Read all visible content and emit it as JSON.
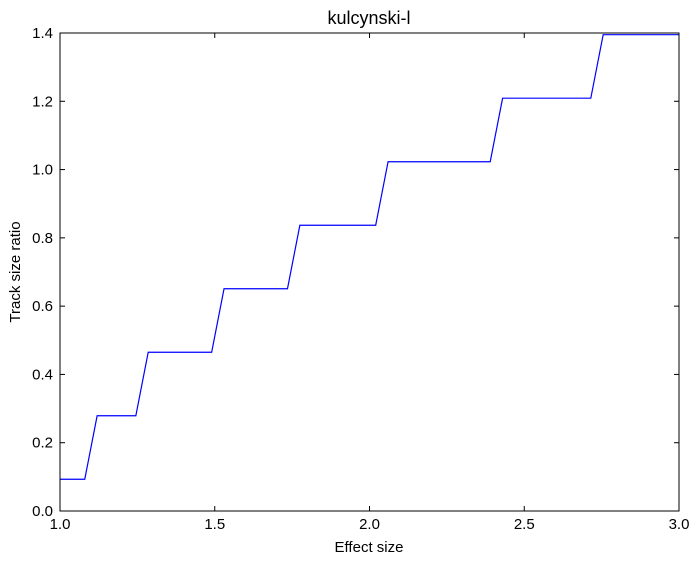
{
  "chart_data": {
    "type": "line",
    "title": "kulcynski-l",
    "xlabel": "Effect size",
    "ylabel": "Track size ratio",
    "xlim": [
      1.0,
      3.0
    ],
    "ylim": [
      0.0,
      1.4
    ],
    "x_ticks": [
      "1.0",
      "1.5",
      "2.0",
      "2.5",
      "3.0"
    ],
    "y_ticks": [
      "0.0",
      "0.2",
      "0.4",
      "0.6",
      "0.8",
      "1.0",
      "1.2",
      "1.4"
    ],
    "grid": false,
    "series": [
      {
        "color": "#0000ff",
        "x": [
          1.0,
          1.08,
          1.12,
          1.245,
          1.285,
          1.49,
          1.53,
          1.735,
          1.775,
          2.02,
          2.06,
          2.39,
          2.43,
          2.715,
          2.755,
          3.0
        ],
        "y": [
          0.093,
          0.093,
          0.279,
          0.279,
          0.465,
          0.465,
          0.651,
          0.651,
          0.837,
          0.837,
          1.023,
          1.023,
          1.209,
          1.209,
          1.395,
          1.395
        ]
      }
    ]
  }
}
